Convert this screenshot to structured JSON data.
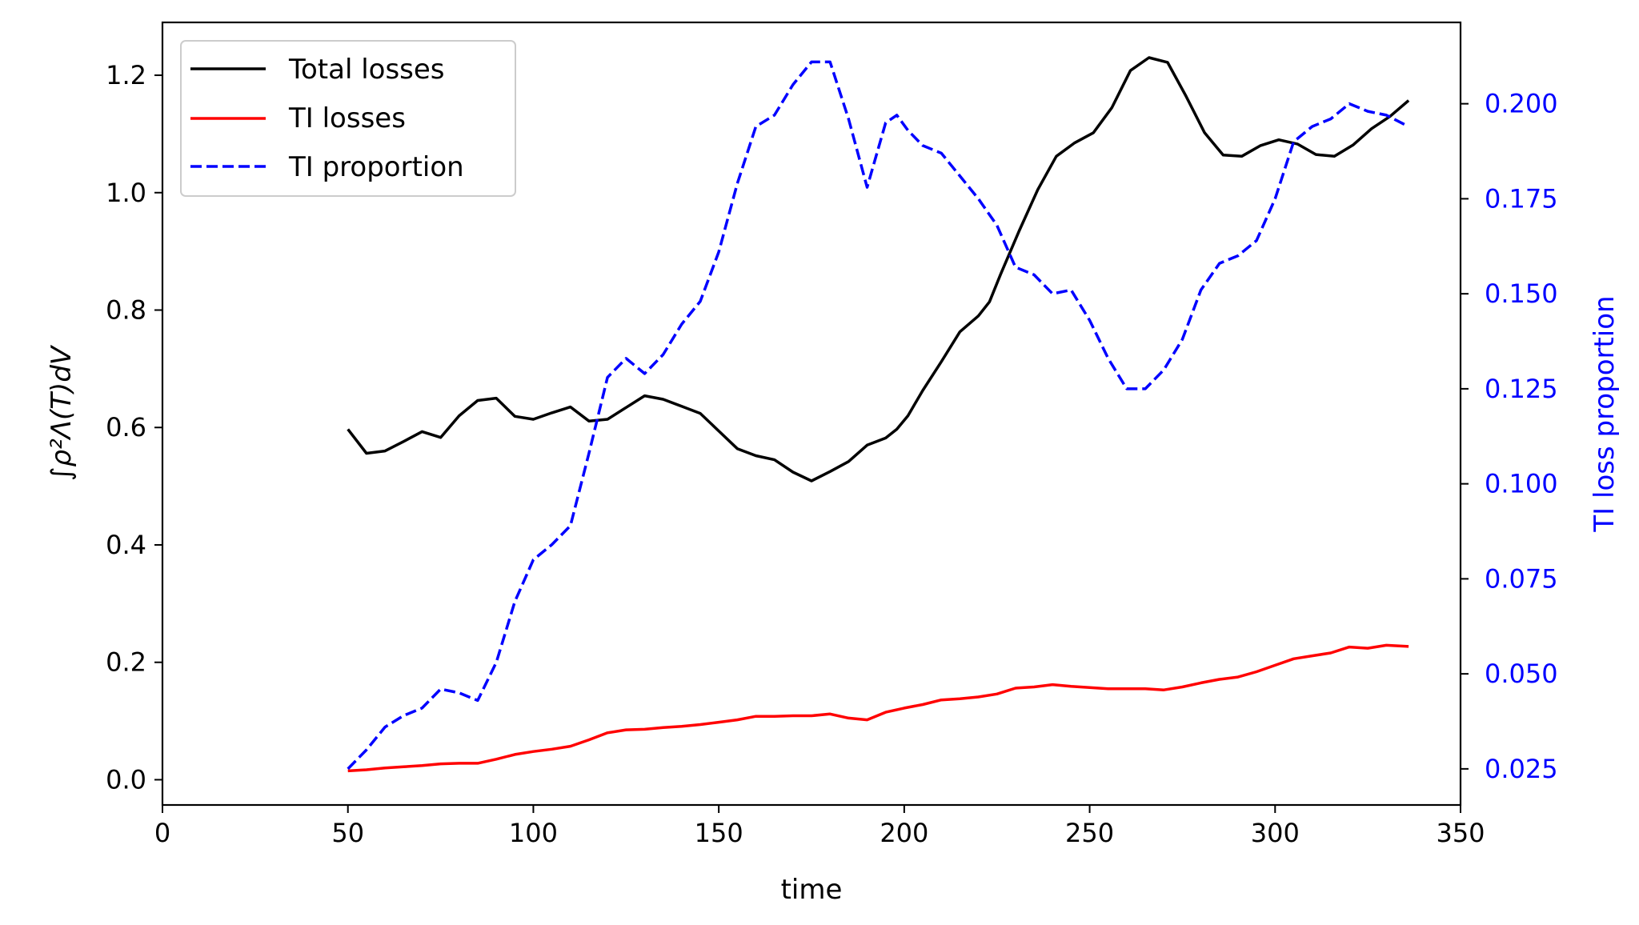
{
  "chart_data": {
    "type": "line",
    "title": "",
    "xlabel": "time",
    "ylabel_left": "∫ρ²Λ(T)dV",
    "ylabel_right": "TI loss proportion",
    "xlim": [
      0,
      350
    ],
    "ylim_left": [
      -0.043,
      1.29
    ],
    "ylim_right": [
      0.0155,
      0.2214
    ],
    "x_ticks": [
      "0",
      "50",
      "100",
      "150",
      "200",
      "250",
      "300",
      "350"
    ],
    "y_ticks_left": [
      "0.0",
      "0.2",
      "0.4",
      "0.6",
      "0.8",
      "1.0",
      "1.2"
    ],
    "y_ticks_right": [
      "0.025",
      "0.050",
      "0.075",
      "0.100",
      "0.125",
      "0.150",
      "0.175",
      "0.200"
    ],
    "legend_position": "top-left",
    "colors": {
      "total": "#000000",
      "ti": "#ff0000",
      "proportion": "#0000ff",
      "right_axis": "#0000ff"
    },
    "series": [
      {
        "name": "Total losses",
        "axis": "left",
        "style": "solid",
        "x": [
          50,
          55,
          60,
          65,
          70,
          75,
          80,
          85,
          90,
          95,
          100,
          105,
          110,
          115,
          120,
          125,
          130,
          135,
          140,
          145,
          150,
          155,
          160,
          165,
          170,
          175,
          180,
          185,
          190,
          195,
          198,
          201,
          205,
          210,
          215,
          220,
          223,
          226,
          231,
          236,
          241,
          246,
          251,
          256,
          261,
          266,
          271,
          276,
          281,
          286,
          291,
          296,
          301,
          306,
          311,
          316,
          321,
          326,
          331,
          336
        ],
        "values": [
          0.597,
          0.556,
          0.56,
          0.576,
          0.593,
          0.583,
          0.62,
          0.646,
          0.65,
          0.619,
          0.614,
          0.625,
          0.635,
          0.611,
          0.614,
          0.634,
          0.654,
          0.648,
          0.636,
          0.624,
          0.594,
          0.564,
          0.552,
          0.545,
          0.524,
          0.509,
          0.525,
          0.542,
          0.57,
          0.582,
          0.597,
          0.62,
          0.663,
          0.712,
          0.763,
          0.79,
          0.814,
          0.861,
          0.935,
          1.005,
          1.062,
          1.085,
          1.102,
          1.145,
          1.208,
          1.23,
          1.222,
          1.164,
          1.102,
          1.064,
          1.062,
          1.08,
          1.09,
          1.083,
          1.065,
          1.062,
          1.081,
          1.109,
          1.13,
          1.157
        ]
      },
      {
        "name": "TI losses",
        "axis": "left",
        "style": "solid",
        "x": [
          50,
          55,
          60,
          65,
          70,
          75,
          80,
          85,
          90,
          95,
          100,
          105,
          110,
          115,
          120,
          125,
          130,
          135,
          140,
          145,
          150,
          155,
          160,
          165,
          170,
          175,
          180,
          185,
          190,
          195,
          200,
          205,
          210,
          215,
          220,
          225,
          230,
          235,
          240,
          245,
          250,
          255,
          260,
          265,
          270,
          275,
          280,
          285,
          290,
          295,
          300,
          305,
          310,
          315,
          320,
          325,
          330,
          336
        ],
        "values": [
          0.015,
          0.017,
          0.02,
          0.022,
          0.024,
          0.027,
          0.028,
          0.028,
          0.035,
          0.043,
          0.048,
          0.052,
          0.057,
          0.068,
          0.08,
          0.085,
          0.086,
          0.089,
          0.091,
          0.094,
          0.098,
          0.102,
          0.108,
          0.108,
          0.109,
          0.109,
          0.112,
          0.105,
          0.102,
          0.115,
          0.122,
          0.128,
          0.136,
          0.138,
          0.141,
          0.146,
          0.156,
          0.158,
          0.162,
          0.159,
          0.157,
          0.155,
          0.155,
          0.155,
          0.153,
          0.158,
          0.165,
          0.171,
          0.175,
          0.184,
          0.195,
          0.206,
          0.211,
          0.216,
          0.226,
          0.224,
          0.229,
          0.227
        ]
      },
      {
        "name": "TI proportion",
        "axis": "right",
        "style": "dashed",
        "x": [
          50,
          55,
          60,
          65,
          70,
          75,
          80,
          85,
          90,
          95,
          100,
          105,
          110,
          115,
          120,
          125,
          130,
          135,
          140,
          145,
          150,
          155,
          160,
          165,
          170,
          175,
          180,
          185,
          190,
          195,
          198,
          201,
          205,
          210,
          215,
          220,
          225,
          230,
          235,
          240,
          245,
          250,
          255,
          260,
          265,
          270,
          275,
          280,
          285,
          290,
          295,
          300,
          305,
          310,
          315,
          320,
          325,
          330,
          336
        ],
        "values": [
          0.025,
          0.03,
          0.036,
          0.039,
          0.041,
          0.046,
          0.045,
          0.043,
          0.053,
          0.069,
          0.08,
          0.084,
          0.089,
          0.108,
          0.128,
          0.133,
          0.129,
          0.134,
          0.142,
          0.148,
          0.161,
          0.179,
          0.194,
          0.197,
          0.205,
          0.211,
          0.211,
          0.196,
          0.178,
          0.195,
          0.197,
          0.193,
          0.189,
          0.187,
          0.181,
          0.175,
          0.168,
          0.157,
          0.155,
          0.15,
          0.151,
          0.143,
          0.133,
          0.125,
          0.125,
          0.13,
          0.138,
          0.151,
          0.158,
          0.16,
          0.164,
          0.175,
          0.19,
          0.194,
          0.196,
          0.2,
          0.198,
          0.197,
          0.194
        ]
      }
    ]
  }
}
